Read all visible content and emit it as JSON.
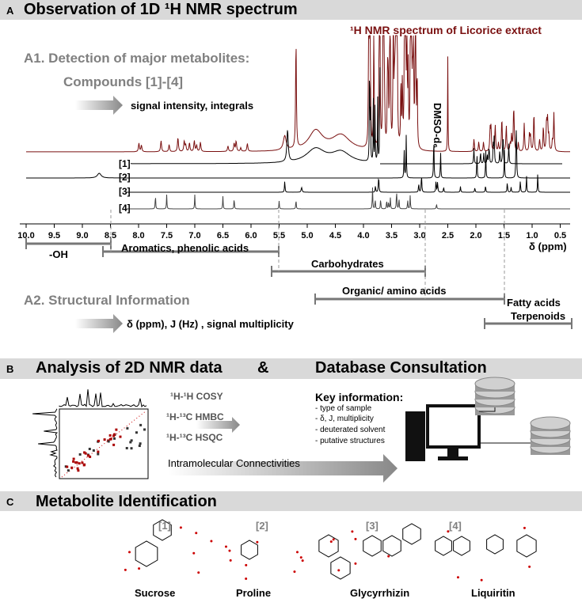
{
  "panel_a": {
    "label": "A",
    "title": "Observation of 1D ¹H NMR spectrum",
    "spectrum_title": "¹H NMR spectrum of Licorice extract",
    "a1_title": "A1. Detection of major metabolites:",
    "a1_compounds": "Compounds  [1]-[4]",
    "a1_arrow_text": "signal intensity, integrals",
    "solvent_label": "DMSO-d₆",
    "traces": [
      "[1]",
      "[2]",
      "[3]",
      "[4]"
    ],
    "axis_ticks": [
      "10.0",
      "9.5",
      "9.0",
      "8.5",
      "8.0",
      "7.5",
      "7.0",
      "6.5",
      "6.0",
      "5.5",
      "5.0",
      "4.5",
      "4.0",
      "3.5",
      "3.0",
      "2.5",
      "2.0",
      "1.5",
      "1.0",
      "0.5"
    ],
    "axis_title": "δ (ppm)",
    "regions": [
      "-OH",
      "Aromatics, phenolic acids",
      "Carbohydrates",
      "Organic/ amino acids",
      "Fatty acids",
      "Terpenoids"
    ],
    "a2_title": "A2. Structural Information",
    "a2_arrow_text": "δ (ppm), J (Hz) , signal multiplicity"
  },
  "panel_b": {
    "label": "B",
    "title": "Analysis of 2D NMR data",
    "amp": "&",
    "title2": "Database Consultation",
    "experiments": [
      "¹H-¹H COSY",
      "¹H-¹³C HMBC",
      "¹H-¹³C HSQC"
    ],
    "arrow_text": "Intramolecular Connectivities",
    "key_title": "Key information:",
    "key_items": [
      "- type of sample",
      "- δ, J,  multiplicity",
      "- deuterated solvent",
      "- putative structures"
    ]
  },
  "panel_c": {
    "label": "C",
    "title": "Metabolite Identification",
    "compounds": [
      {
        "id": "[1]",
        "name": "Sucrose"
      },
      {
        "id": "[2]",
        "name": "Proline"
      },
      {
        "id": "[3]",
        "name": "Glycyrrhizin"
      },
      {
        "id": "[4]",
        "name": "Liquiritin"
      }
    ]
  }
}
